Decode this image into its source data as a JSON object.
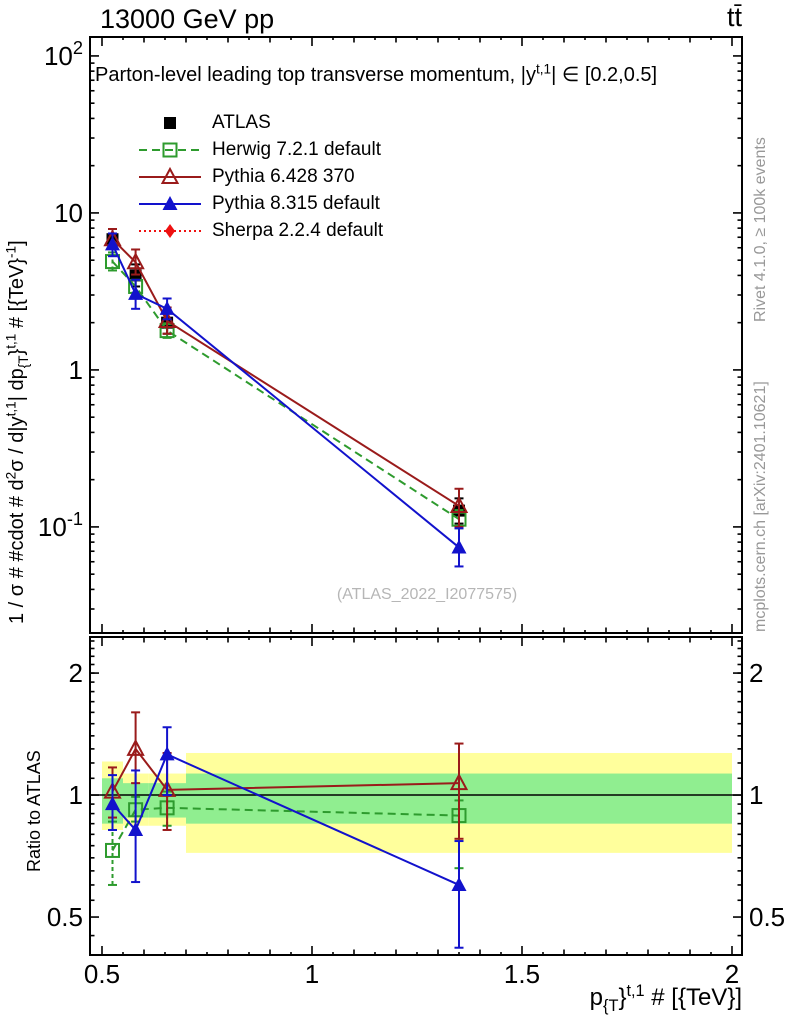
{
  "header": {
    "left": "13000 GeV pp",
    "right": "tt̄"
  },
  "side_texts": {
    "rivet": "Rivet 4.1.0, ≥ 100k events",
    "mcplots": "mcplots.cern.ch [arXiv:2401.10621]"
  },
  "legend": [
    {
      "key": "atlas",
      "label": "ATLAS"
    },
    {
      "key": "herwig",
      "label": "Herwig 7.2.1 default"
    },
    {
      "key": "pythia6",
      "label": "Pythia 6.428 370"
    },
    {
      "key": "pythia8",
      "label": "Pythia 8.315 default"
    },
    {
      "key": "sherpa",
      "label": "Sherpa 2.2.4 default"
    }
  ],
  "series_styles": {
    "atlas": {
      "color": "#000000",
      "marker": "square-filled",
      "line": "none"
    },
    "herwig": {
      "color": "#2e9b2e",
      "marker": "square-open",
      "line": "dashed"
    },
    "pythia6": {
      "color": "#9a1b1b",
      "marker": "triangle-open",
      "line": "solid"
    },
    "pythia8": {
      "color": "#1212cc",
      "marker": "triangle-filled",
      "line": "solid"
    },
    "sherpa": {
      "color": "#ee1111",
      "marker": "diamond-filled",
      "line": "dotted"
    }
  },
  "chart_data": {
    "type": "scatter",
    "x": {
      "label_rich": "p_({T)}^(t,1) # [{TeV}]",
      "range": [
        0.47143,
        2.02381
      ],
      "major_ticks": [
        0.5,
        1.0,
        1.5,
        2.0
      ],
      "tick_labels": [
        "0.5",
        "1",
        "1.5",
        "2"
      ]
    },
    "bins": {
      "edges": [
        0.5,
        0.55,
        0.61,
        0.7,
        2.0
      ],
      "centers": [
        0.525,
        0.58,
        0.655,
        1.35
      ]
    },
    "main_panel": {
      "title_rich": "Parton-level leading top transverse momentum, |y^(t,1)| ∈ [0.2,0.5]",
      "ylabel_rich": "1 / σ # #cdot # d^(2)σ / d|y^(t,1)| dp_({T)}^(t,1) # [{TeV}^(-1)]",
      "yscale": "log",
      "yrange": [
        0.0211,
        132
      ],
      "ytick_labels": [
        {
          "v": 100,
          "rich": "10^(2)"
        },
        {
          "v": 10,
          "rich": "10"
        },
        {
          "v": 1,
          "rich": "1"
        },
        {
          "v": 0.1,
          "rich": "10^(-1)"
        }
      ],
      "watermark": "(ATLAS_2022_I2077575)",
      "series": [
        {
          "key": "atlas",
          "y": [
            6.8,
            4.0,
            2.0,
            0.127
          ],
          "ylo": [
            5.9,
            3.4,
            1.7,
            0.105
          ],
          "yhi": [
            7.9,
            4.7,
            2.4,
            0.152
          ]
        },
        {
          "key": "herwig",
          "y": [
            4.9,
            3.4,
            1.78,
            0.112
          ],
          "ylo": [
            4.3,
            3.1,
            1.6,
            0.098
          ],
          "yhi": [
            5.6,
            3.75,
            1.98,
            0.128
          ]
        },
        {
          "key": "pythia6",
          "y": [
            6.8,
            4.85,
            2.05,
            0.136
          ],
          "ylo": [
            5.9,
            4.05,
            1.7,
            0.1
          ],
          "yhi": [
            7.9,
            5.85,
            2.5,
            0.175
          ]
        },
        {
          "key": "pythia8",
          "y": [
            6.3,
            3.05,
            2.45,
            0.074
          ],
          "ylo": [
            5.3,
            2.45,
            2.1,
            0.056
          ],
          "yhi": [
            7.4,
            3.75,
            2.85,
            0.098
          ]
        }
      ]
    },
    "ratio_panel": {
      "ylabel": "Ratio to ATLAS",
      "yscale": "log",
      "yrange": [
        0.403,
        2.455
      ],
      "reference_line": 1,
      "ytick_labels": [
        {
          "v": 2,
          "rich": "2"
        },
        {
          "v": 1,
          "rich": "1"
        },
        {
          "v": 0.5,
          "rich": "0.5"
        }
      ],
      "bands": {
        "yellow_color": "#ffff9c",
        "green_color": "#90ee90",
        "yellow": [
          [
            0.82,
            1.21
          ],
          [
            0.84,
            1.13
          ],
          [
            0.84,
            1.13
          ],
          [
            0.72,
            1.27
          ]
        ],
        "green": [
          [
            0.85,
            1.1
          ],
          [
            0.88,
            1.07
          ],
          [
            0.88,
            1.07
          ],
          [
            0.85,
            1.13
          ]
        ]
      },
      "series": [
        {
          "key": "herwig",
          "y": [
            0.73,
            0.92,
            0.93,
            0.89
          ],
          "ylo": [
            0.6,
            0.86,
            0.84,
            0.66
          ],
          "yhi": [
            0.86,
            0.99,
            1.02,
            0.97
          ]
        },
        {
          "key": "pythia6",
          "y": [
            1.02,
            1.3,
            1.03,
            1.07
          ],
          "ylo": [
            0.88,
            1.07,
            0.82,
            0.78
          ],
          "yhi": [
            1.17,
            1.6,
            1.27,
            1.34
          ]
        },
        {
          "key": "pythia8",
          "y": [
            0.95,
            0.82,
            1.26,
            0.6
          ],
          "ylo": [
            0.82,
            0.61,
            1.0,
            0.42
          ],
          "yhi": [
            1.12,
            1.15,
            1.47,
            0.77
          ]
        }
      ]
    }
  }
}
